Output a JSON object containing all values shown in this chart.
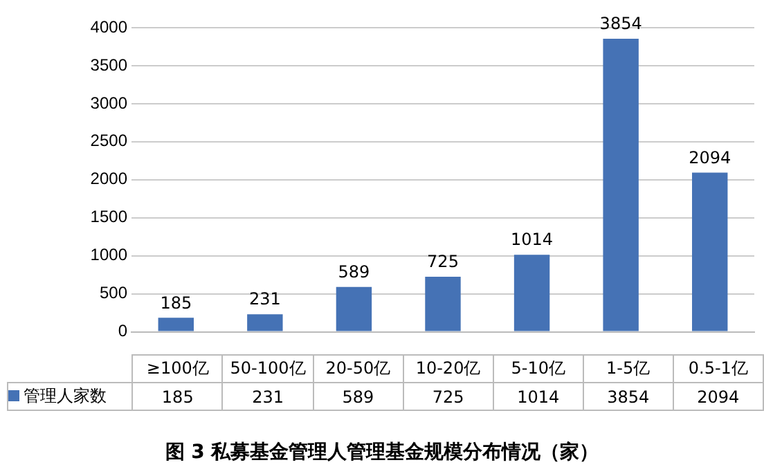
{
  "chart_data": {
    "type": "bar",
    "title": "图 3 私募基金管理人管理基金规模分布情况（家）",
    "categories": [
      "≥100亿",
      "50-100亿",
      "20-50亿",
      "10-20亿",
      "5-10亿",
      "1-5亿",
      "0.5-1亿"
    ],
    "series": [
      {
        "name": "管理人家数",
        "color": "#4572b5",
        "values": [
          185,
          231,
          589,
          725,
          1014,
          3854,
          2094
        ],
        "value_labels": [
          "185",
          "231",
          "589",
          "725",
          "1014",
          "3854",
          "2094"
        ]
      }
    ],
    "ylim": [
      0,
      4000
    ],
    "yticks": [
      0,
      500,
      1000,
      1500,
      2000,
      2500,
      3000,
      3500,
      4000
    ],
    "grid": "y",
    "annotations": [
      "185",
      "231",
      "589",
      "725",
      "1014",
      "3854",
      "2094"
    ]
  }
}
